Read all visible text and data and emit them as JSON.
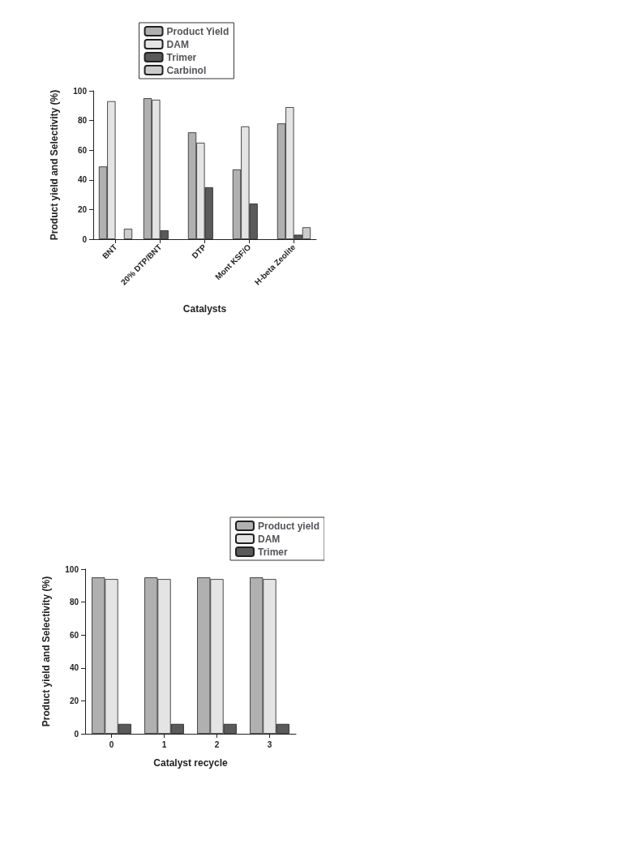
{
  "chart_data": [
    {
      "type": "bar",
      "xlabel": "Catalysts",
      "ylabel": "Product yield and Selectivity (%)",
      "categories": [
        "BNT",
        "20% DTP/BNT",
        "DTP",
        "Mont KSF/O",
        "H-beta Zeolite"
      ],
      "series": [
        {
          "name": "Product Yield",
          "color": "#b0b0b0",
          "values": [
            49,
            95,
            72,
            47,
            78
          ]
        },
        {
          "name": "DAM",
          "color": "#e4e4e4",
          "values": [
            93,
            94,
            65,
            76,
            89
          ]
        },
        {
          "name": "Trimer",
          "color": "#5a5a5a",
          "values": [
            null,
            6,
            35,
            24,
            3
          ]
        },
        {
          "name": "Carbinol",
          "color": "#cccccc",
          "values": [
            7,
            null,
            null,
            null,
            8
          ]
        }
      ],
      "ylim": [
        0,
        100
      ],
      "yticks": [
        0,
        20,
        40,
        60,
        80,
        100
      ],
      "grid": false,
      "legend": "top"
    },
    {
      "type": "bar",
      "xlabel": "Catalyst recycle",
      "ylabel": "Product yield and Selectivity (%)",
      "categories": [
        "0",
        "1",
        "2",
        "3"
      ],
      "series": [
        {
          "name": "Product yield",
          "color": "#b0b0b0",
          "values": [
            95,
            95,
            95,
            95
          ]
        },
        {
          "name": "DAM",
          "color": "#e4e4e4",
          "values": [
            94,
            94,
            94,
            94
          ]
        },
        {
          "name": "Trimer",
          "color": "#5a5a5a",
          "values": [
            6,
            6,
            6,
            6
          ]
        }
      ],
      "ylim": [
        0,
        100
      ],
      "yticks": [
        0,
        20,
        40,
        60,
        80,
        100
      ],
      "grid": false,
      "legend": "top right"
    }
  ]
}
